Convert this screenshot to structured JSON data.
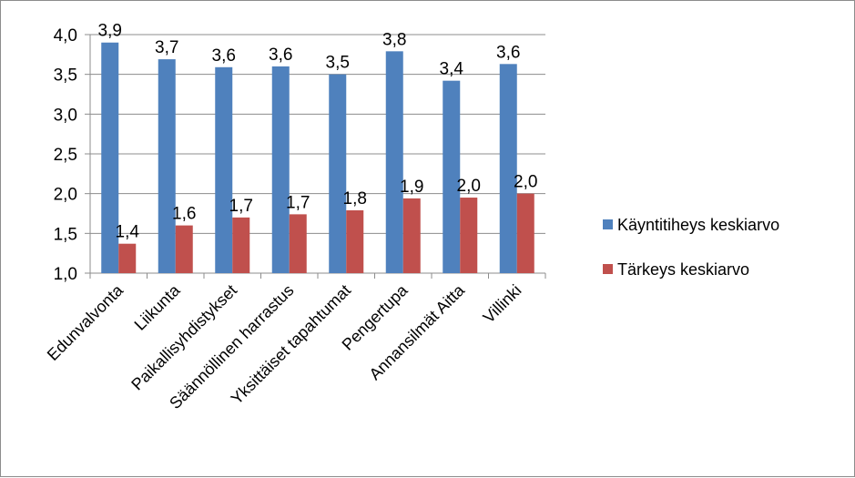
{
  "chart_data": {
    "type": "bar",
    "categories": [
      "Edunvalvonta",
      "Liikunta",
      "Paikallisyhdistykset",
      "Säännöllinen harrastus",
      "Yksittäiset tapahtumat",
      "Pengertupa",
      "Annansilmät Aitta",
      "Villinki"
    ],
    "series": [
      {
        "name": "Käyntitiheys keskiarvo",
        "color": "#4f81bd",
        "values": [
          3.9,
          3.69,
          3.59,
          3.6,
          3.5,
          3.79,
          3.42,
          3.63
        ],
        "labels": [
          "3,9",
          "3,7",
          "3,6",
          "3,6",
          "3,5",
          "3,8",
          "3,4",
          "3,6"
        ]
      },
      {
        "name": "Tärkeys keskiarvo",
        "color": "#c0504d",
        "values": [
          1.37,
          1.6,
          1.7,
          1.74,
          1.79,
          1.94,
          1.95,
          2.0
        ],
        "labels": [
          "1,4",
          "1,6",
          "1,7",
          "1,7",
          "1,8",
          "1,9",
          "2,0",
          "2,0"
        ]
      }
    ],
    "ylim": [
      1.0,
      4.0
    ],
    "yticks": [
      1.0,
      1.5,
      2.0,
      2.5,
      3.0,
      3.5,
      4.0
    ],
    "ytick_labels": [
      "1,0",
      "1,5",
      "2,0",
      "2,5",
      "3,0",
      "3,5",
      "4,0"
    ],
    "grid": true,
    "legend_position": "right",
    "title": "",
    "xlabel": "",
    "ylabel": ""
  }
}
